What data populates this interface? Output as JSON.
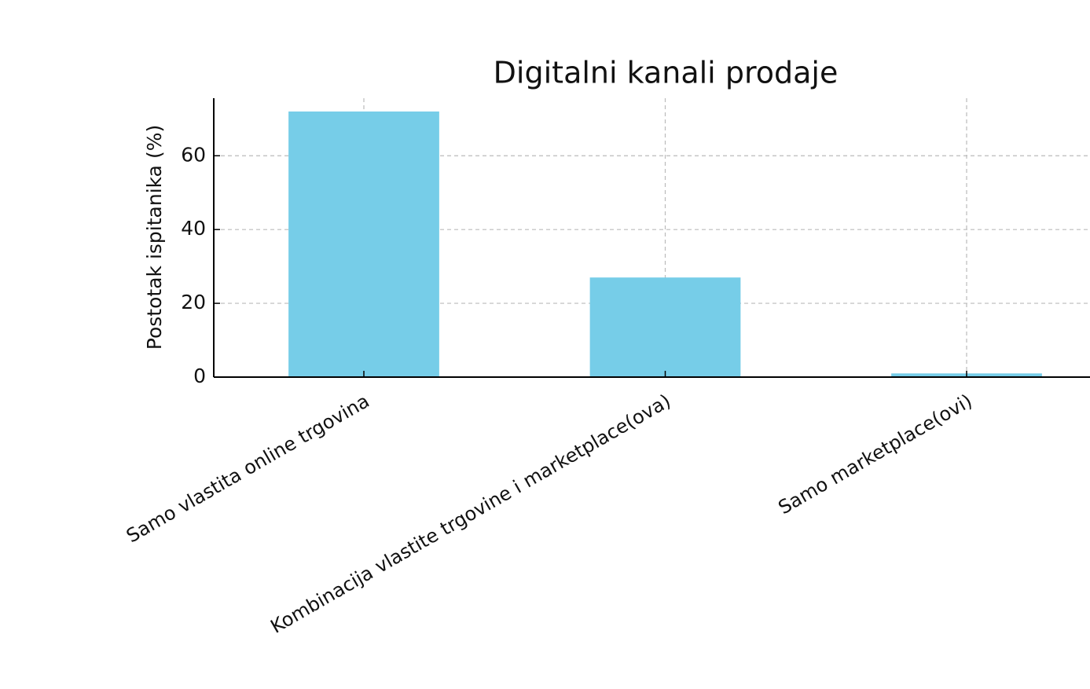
{
  "chart_data": {
    "type": "bar",
    "title": "Digitalni kanali prodaje",
    "y_label": "Postotak ispitanika (%)",
    "categories": [
      "Samo vlastita online trgovina",
      "Kombinacija vlastite trgovine i marketplace(ova)",
      "Samo marketplace(ovi)"
    ],
    "values": [
      72,
      27,
      1
    ],
    "color": "#76cde8",
    "ylim": [
      0,
      75.6
    ],
    "yticks": [
      0,
      20,
      40,
      60
    ],
    "grid": true
  }
}
